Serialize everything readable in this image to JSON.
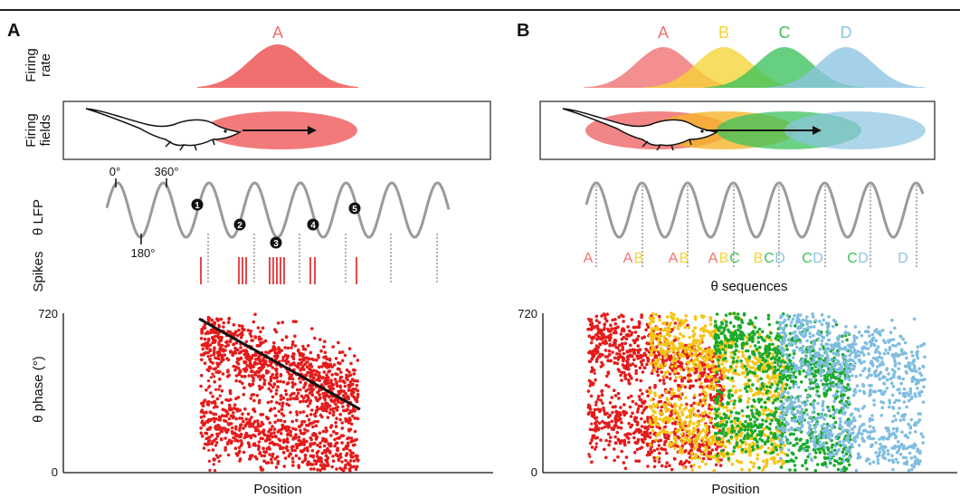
{
  "panels": {
    "A": {
      "letter": "A",
      "row_labels": {
        "firing_rate": [
          "Firing",
          "rate"
        ],
        "firing_fields": [
          "Firing",
          "fields"
        ],
        "lfp": "θ LFP",
        "spikes": "Spikes"
      },
      "cells": [
        {
          "name": "A",
          "color": "#f07070"
        }
      ],
      "phase_labels": [
        "0°",
        "360°",
        "180°"
      ],
      "spike_markers": [
        "1",
        "2",
        "3",
        "4",
        "5"
      ],
      "scatter": {
        "ylabel": "θ phase (°)",
        "xlabel": "Position",
        "y_ticks": [
          "720",
          "0"
        ]
      }
    },
    "B": {
      "letter": "B",
      "cells": [
        {
          "name": "A",
          "color": "#f07070"
        },
        {
          "name": "B",
          "color": "#f5d335"
        },
        {
          "name": "C",
          "color": "#3cc25c"
        },
        {
          "name": "D",
          "color": "#8cc4e2"
        }
      ],
      "sequence_groups": [
        [
          "A"
        ],
        [
          "A",
          "B"
        ],
        [
          "A",
          "B"
        ],
        [
          "A",
          "B",
          "C"
        ],
        [
          "B",
          "C",
          "D"
        ],
        [
          "C",
          "D"
        ],
        [
          "C",
          "D"
        ],
        [
          "D"
        ]
      ],
      "sequence_label": "θ sequences",
      "scatter": {
        "xlabel": "Position",
        "y_ticks": [
          "720",
          "0"
        ]
      }
    }
  },
  "colors": {
    "A": "#f07070",
    "B": "#f5d335",
    "C": "#3cc25c",
    "D": "#8cc4e2",
    "spike_dots_A": "#e41b1b",
    "spike_dots_B": "#f4c414",
    "spike_dots_C": "#1aaa2c",
    "spike_dots_D": "#7fbde0",
    "lfp": "#999999"
  }
}
